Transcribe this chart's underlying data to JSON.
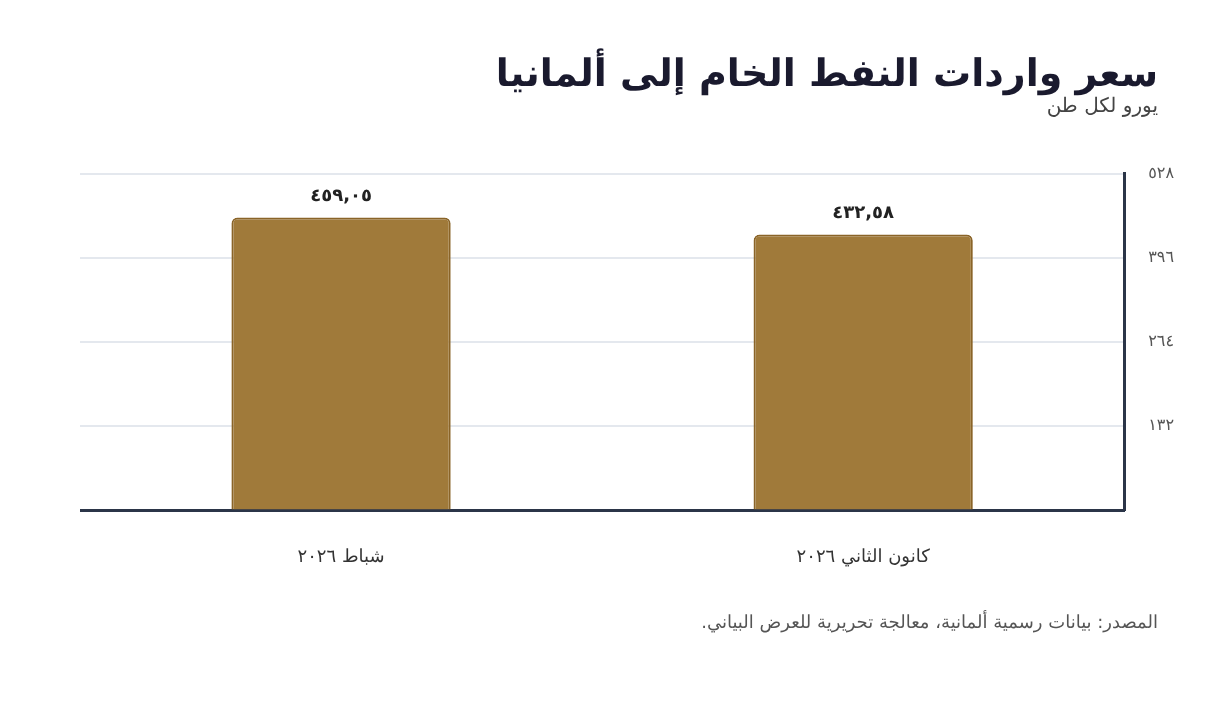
{
  "chart_data": {
    "type": "bar",
    "title": "سعر واردات النفط الخام إلى ألمانيا",
    "subtitle": "يورو لكل طن",
    "categories": [
      "شباط ٢٠٢٦",
      "كانون الثاني ٢٠٢٦"
    ],
    "values": [
      459.05,
      432.58
    ],
    "color": "#a07a3a",
    "value_labels": [
      "٤٥٩,٠٥",
      "٤٣٢,٥٨"
    ],
    "ylim": [
      0,
      528
    ],
    "yticks": [
      {
        "value": 0,
        "label": null
      },
      {
        "value": 132,
        "label": "١٣٢"
      },
      {
        "value": 264,
        "label": "٢٦٤"
      },
      {
        "value": 396,
        "label": "٣٩٦"
      },
      {
        "value": 528,
        "label": "٥٢٨"
      }
    ],
    "grid": "y",
    "annotations": [
      "المصدر: بيانات رسمية ألمانية، معالجة تحريرية للعرض البياني."
    ]
  }
}
